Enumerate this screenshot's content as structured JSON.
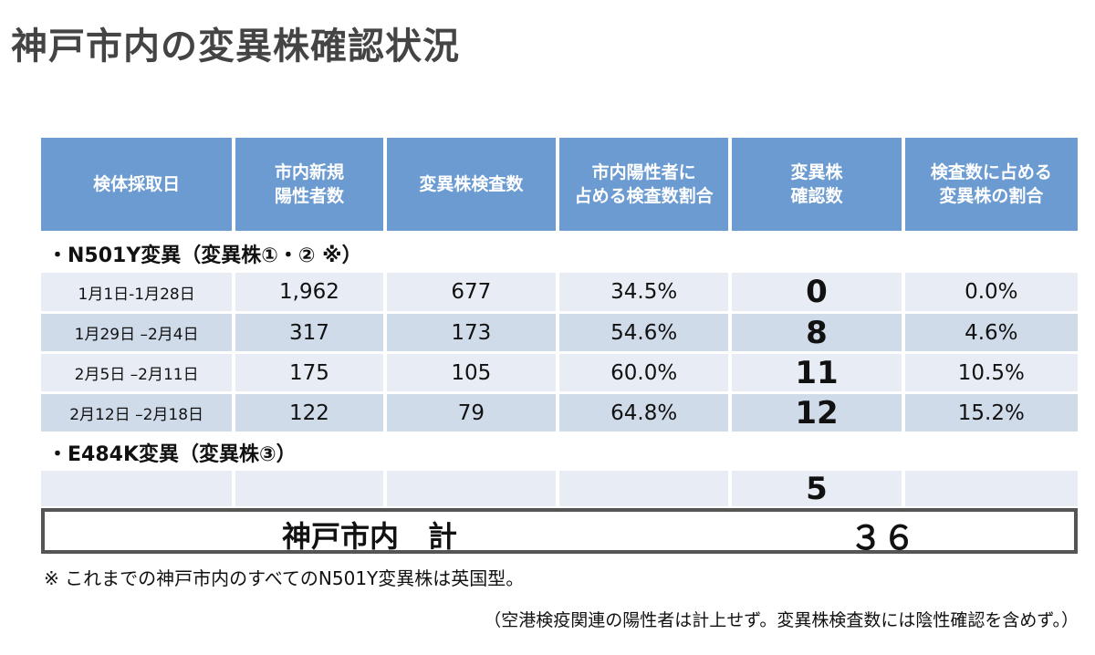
{
  "title": "神戸市内の変異株確認状況",
  "table": {
    "headers": [
      "検体採取日",
      "市内新規\n陽性者数",
      "変異株検査数",
      "市内陽性者に\n占める検査数割合",
      "変異株\n確認数",
      "検査数に占める\n変異株の割合"
    ],
    "section1": "・N501Y変異（変異株①・② ※）",
    "rows": [
      [
        "1月1日-1月28日",
        "1,962",
        "677",
        "34.5%",
        "0",
        "0.0%"
      ],
      [
        "1月29日 –2月4日",
        "317",
        "173",
        "54.6%",
        "8",
        "4.6%"
      ],
      [
        "2月5日 –2月11日",
        "175",
        "105",
        "60.0%",
        "11",
        "10.5%"
      ],
      [
        "2月12日 –2月18日",
        "122",
        "79",
        "64.8%",
        "12",
        "15.2%"
      ]
    ],
    "section2": "・E484K変異（変異株③）",
    "e484k_row": [
      "",
      "",
      "",
      "",
      "5",
      ""
    ]
  },
  "total": {
    "label": "神戸市内　計",
    "value": "３６"
  },
  "note": "※ これまでの神戸市内のすべてのN501Y変異株は英国型。",
  "subnote": "（空港検疫関連の陽性者は計上せず。変異株検査数には陰性確認を含めず。）"
}
